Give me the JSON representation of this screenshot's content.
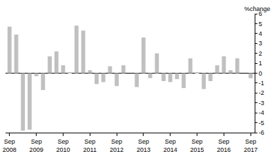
{
  "chart_data": {
    "type": "bar",
    "ylabel": "%change",
    "categories": [
      "Sep 2008",
      null,
      null,
      null,
      "Sep 2009",
      null,
      null,
      null,
      "Sep 2010",
      null,
      null,
      null,
      "Sep 2011",
      null,
      null,
      null,
      "Sep 2012",
      null,
      null,
      null,
      "Sep 2013",
      null,
      null,
      null,
      "Sep 2014",
      null,
      null,
      null,
      "Sep 2015",
      null,
      null,
      null,
      "Sep 2016",
      null,
      null,
      null,
      "Sep 2017"
    ],
    "values": [
      4.7,
      3.9,
      -5.8,
      -5.7,
      -0.3,
      -1.7,
      1.7,
      2.2,
      0.8,
      0.1,
      4.8,
      4.3,
      0.3,
      -1.1,
      -0.9,
      0.7,
      -1.3,
      0.8,
      0,
      -1.4,
      3.6,
      -0.5,
      2.0,
      -0.8,
      -0.9,
      -0.6,
      -1.5,
      1.5,
      0.1,
      -1.6,
      -0.8,
      0.8,
      1.7,
      0.3,
      1.5,
      0,
      -0.5
    ],
    "color": "#c0c0c0",
    "ylim": [
      -6,
      6
    ],
    "yticks": [
      -6,
      -5,
      -4,
      -3,
      -2,
      -1,
      0,
      1,
      2,
      3,
      4,
      5,
      6
    ],
    "grid": false
  }
}
